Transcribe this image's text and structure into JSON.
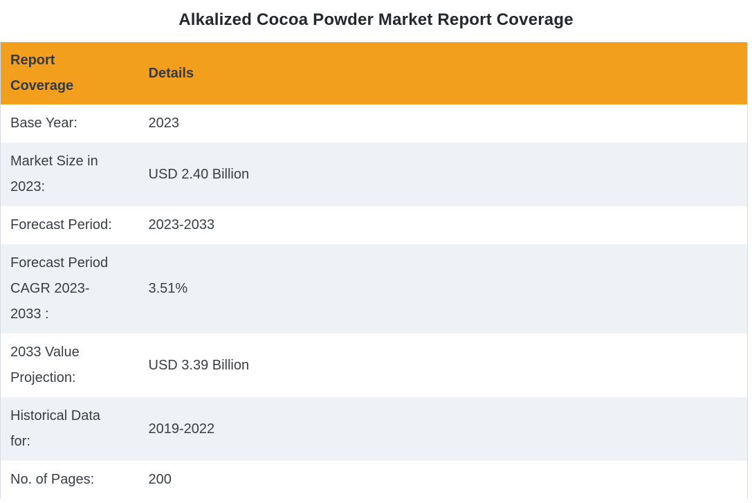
{
  "title": "Alkalized Cocoa Powder Market Report Coverage",
  "table": {
    "header": {
      "col1": "Report Coverage",
      "col2": "Details"
    },
    "rows": [
      {
        "label": "Base Year:",
        "value": "2023"
      },
      {
        "label": "Market Size in 2023:",
        "value": "USD 2.40 Billion"
      },
      {
        "label": "Forecast Period:",
        "value": "2023-2033"
      },
      {
        "label": "Forecast Period CAGR 2023-2033 :",
        "value": "3.51%"
      },
      {
        "label": "2033 Value Projection:",
        "value": "USD 3.39 Billion"
      },
      {
        "label": "Historical Data for:",
        "value": "2019-2022"
      },
      {
        "label": "No. of Pages:",
        "value": "200"
      }
    ]
  },
  "colors": {
    "header_bg": "#F29F1E",
    "row_alt_bg": "#EEF1F6",
    "border": "#D7DADF"
  }
}
